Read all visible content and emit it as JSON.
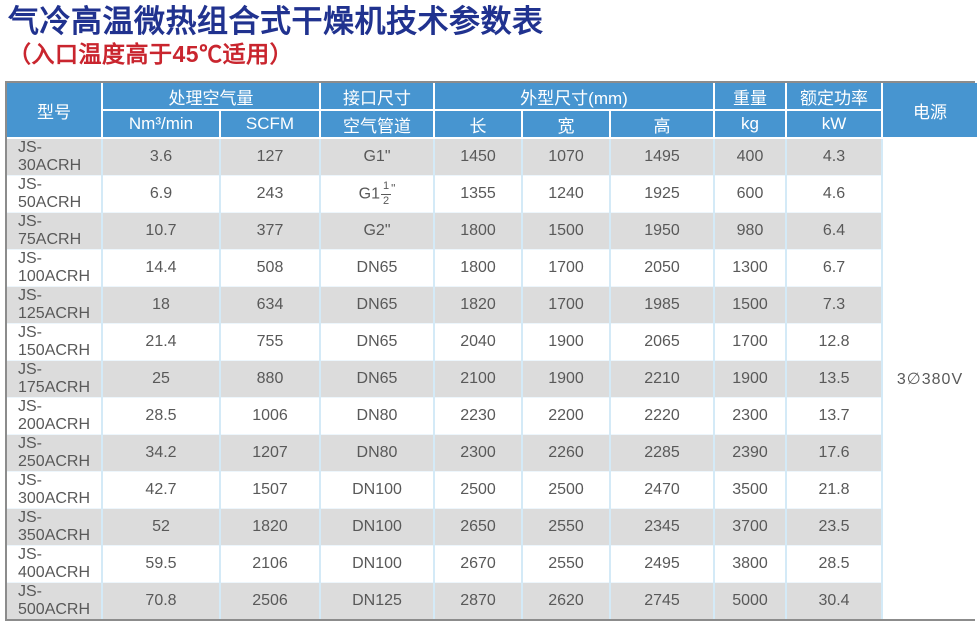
{
  "title": {
    "main": "气冷高温微热组合式干燥机技术参数表",
    "subtitle": "（入口温度高于45℃适用）"
  },
  "colors": {
    "header_bg": "#4795d0",
    "title_blue": "#20328f",
    "subtitle_red": "#c9252e",
    "row_alt_bg": "#dcdcdc",
    "body_text": "#595959",
    "table_border": "#8c8c8c",
    "col_separator": "#d4eaf7",
    "row_separator": "#edf6fc"
  },
  "table": {
    "headers": {
      "model": "型号",
      "air_volume": "处理空气量",
      "port_size": "接口尺寸",
      "dimensions": "外型尺寸(mm)",
      "weight": "重量",
      "rated_power": "额定功率",
      "power_supply": "电源"
    },
    "subheaders": {
      "nm3": "Nm³/min",
      "scfm": "SCFM",
      "air_pipe": "空气管道",
      "length": "长",
      "width": "宽",
      "height": "高",
      "kg": "kg",
      "kw": "kW"
    },
    "power_supply_value": "3∅380V",
    "rows": [
      {
        "model": "JS-30ACRH",
        "nm3": "3.6",
        "scfm": "127",
        "pipe": "G1\"",
        "length": "1450",
        "width": "1070",
        "height": "1495",
        "kg": "400",
        "kw": "4.3"
      },
      {
        "model": "JS-50ACRH",
        "nm3": "6.9",
        "scfm": "243",
        "pipe": {
          "pre": "G1",
          "numerator": "1",
          "denominator": "2",
          "suffix": "\""
        },
        "length": "1355",
        "width": "1240",
        "height": "1925",
        "kg": "600",
        "kw": "4.6"
      },
      {
        "model": "JS-75ACRH",
        "nm3": "10.7",
        "scfm": "377",
        "pipe": "G2\"",
        "length": "1800",
        "width": "1500",
        "height": "1950",
        "kg": "980",
        "kw": "6.4"
      },
      {
        "model": "JS-100ACRH",
        "nm3": "14.4",
        "scfm": "508",
        "pipe": "DN65",
        "length": "1800",
        "width": "1700",
        "height": "2050",
        "kg": "1300",
        "kw": "6.7"
      },
      {
        "model": "JS-125ACRH",
        "nm3": "18",
        "scfm": "634",
        "pipe": "DN65",
        "length": "1820",
        "width": "1700",
        "height": "1985",
        "kg": "1500",
        "kw": "7.3"
      },
      {
        "model": "JS-150ACRH",
        "nm3": "21.4",
        "scfm": "755",
        "pipe": "DN65",
        "length": "2040",
        "width": "1900",
        "height": "2065",
        "kg": "1700",
        "kw": "12.8"
      },
      {
        "model": "JS-175ACRH",
        "nm3": "25",
        "scfm": "880",
        "pipe": "DN65",
        "length": "2100",
        "width": "1900",
        "height": "2210",
        "kg": "1900",
        "kw": "13.5"
      },
      {
        "model": "JS-200ACRH",
        "nm3": "28.5",
        "scfm": "1006",
        "pipe": "DN80",
        "length": "2230",
        "width": "2200",
        "height": "2220",
        "kg": "2300",
        "kw": "13.7"
      },
      {
        "model": "JS-250ACRH",
        "nm3": "34.2",
        "scfm": "1207",
        "pipe": "DN80",
        "length": "2300",
        "width": "2260",
        "height": "2285",
        "kg": "2390",
        "kw": "17.6"
      },
      {
        "model": "JS-300ACRH",
        "nm3": "42.7",
        "scfm": "1507",
        "pipe": "DN100",
        "length": "2500",
        "width": "2500",
        "height": "2470",
        "kg": "3500",
        "kw": "21.8"
      },
      {
        "model": "JS-350ACRH",
        "nm3": "52",
        "scfm": "1820",
        "pipe": "DN100",
        "length": "2650",
        "width": "2550",
        "height": "2345",
        "kg": "3700",
        "kw": "23.5"
      },
      {
        "model": "JS-400ACRH",
        "nm3": "59.5",
        "scfm": "2106",
        "pipe": "DN100",
        "length": "2670",
        "width": "2550",
        "height": "2495",
        "kg": "3800",
        "kw": "28.5"
      },
      {
        "model": "JS-500ACRH",
        "nm3": "70.8",
        "scfm": "2506",
        "pipe": "DN125",
        "length": "2870",
        "width": "2620",
        "height": "2745",
        "kg": "5000",
        "kw": "30.4"
      }
    ]
  }
}
